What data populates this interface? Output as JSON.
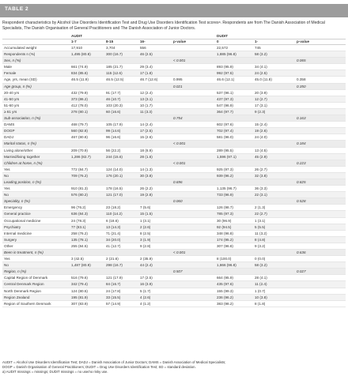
{
  "banner": {
    "label": "TABLE 2"
  },
  "caption": "Respondent characteristics by Alcohol Use Disorders Identification Test and Drug Use Disorders Identification Test scoresᵃ. Respondents are from The Danish Association of Medical Specialists, The Danish Organisation of General Practitioners and The Danish Association of Junior Doctors.",
  "table": {
    "groups": [
      "AUDIT",
      "DUDIT"
    ],
    "columns": [
      "",
      "1-7",
      "8-15",
      "16-",
      "p-value",
      "0",
      "1-",
      "p-value"
    ],
    "rows": [
      {
        "type": "row",
        "cells": [
          "Accumulated weight",
          "17,910",
          "3,704",
          "556",
          "",
          "22,572",
          "745",
          ""
        ]
      },
      {
        "type": "row",
        "cells": [
          "Respondents n (%)",
          "1,495 (80.8)",
          "300 (16.7)",
          "46 (2.5)",
          "",
          "1,885 (96.8)",
          "58 (3.2)",
          ""
        ]
      },
      {
        "type": "section",
        "cells": [
          "Sex, n (%)",
          "",
          "",
          "",
          "< 0.001",
          "",
          "",
          "0.065"
        ]
      },
      {
        "type": "row",
        "cells": [
          "Male",
          "661 (74.9)",
          "185 (21.7)",
          "29 (3.4)",
          "",
          "893 (95.9)",
          "34 (4.1)",
          ""
        ]
      },
      {
        "type": "row",
        "cells": [
          "Female",
          "834 (85.6)",
          "115 (12.6)",
          "17 (1.8)",
          "",
          "992 (97.5)",
          "24 (2.5)",
          ""
        ]
      },
      {
        "type": "row",
        "cells": [
          "Age, yrs, mean (SD)",
          "46.5 (11.9)",
          "46.5 (12.5)",
          "46.7 (12.6)",
          "0.995",
          "46.6 (12.1)",
          "45.0 (11.8)",
          "0.358"
        ]
      },
      {
        "type": "section",
        "cells": [
          "Age group, n (%)",
          "",
          "",
          "",
          "0.021",
          "",
          "",
          "0.350"
        ]
      },
      {
        "type": "row",
        "cells": [
          "20-40 yrs",
          "432 (79.9)",
          "91 (17.7)",
          "12 (2.4)",
          "",
          "537 (96.1)",
          "20 (3.9)",
          ""
        ]
      },
      {
        "type": "row",
        "cells": [
          "41-50 yrs",
          "373 (86.2)",
          "46 (10.7)",
          "13 (3.1)",
          "",
          "437 (97.3)",
          "12 (2.7)",
          ""
        ]
      },
      {
        "type": "row",
        "cells": [
          "51-60 yrs",
          "412 (78.0)",
          "103 (20.3)",
          "10 (1.7)",
          "",
          "547 (96.9)",
          "17 (3.1)",
          ""
        ]
      },
      {
        "type": "row",
        "cells": [
          "≥ 61 yrs",
          "278 (80.1)",
          "60 (16.6)",
          "11 (3.3)",
          "",
          "364 (97.7)",
          "9 (2.3)",
          ""
        ]
      },
      {
        "type": "section",
        "cells": [
          "Sub-association, n (%)",
          "",
          "",
          "",
          "0.754",
          "",
          "",
          "0.163"
        ]
      },
      {
        "type": "row",
        "cells": [
          "DAMS",
          "468 (79.7)",
          "105 (17.9)",
          "14 (2.4)",
          "",
          "602 (97.6)",
          "15 (2.4)",
          ""
        ]
      },
      {
        "type": "row",
        "cells": [
          "DOGP",
          "560 (82.8)",
          "99 (14.6)",
          "17 (2.5)",
          "",
          "702 (97.4)",
          "19 (2.6)",
          ""
        ]
      },
      {
        "type": "row",
        "cells": [
          "DADJ",
          "467 (80.8)",
          "96 (16.6)",
          "15 (2.6)",
          "",
          "581 (96.0)",
          "24 (4.0)",
          ""
        ]
      },
      {
        "type": "section",
        "cells": [
          "Marital status, n (%)",
          "",
          "",
          "",
          "< 0.001",
          "",
          "",
          "0.184"
        ]
      },
      {
        "type": "row",
        "cells": [
          "Living alone/other",
          "209 (70.9)",
          "56 (22.2)",
          "18 (6.9)",
          "",
          "289 (95.5)",
          "13 (4.5)",
          ""
        ]
      },
      {
        "type": "row",
        "cells": [
          "Married/living together",
          "1,286 (82.7)",
          "244 (15.6)",
          "28 (1.6)",
          "",
          "1,596 (97.1)",
          "45 (2.9)",
          ""
        ]
      },
      {
        "type": "section",
        "cells": [
          "Children at home, n (%)",
          "",
          "",
          "",
          "< 0.001",
          "",
          "",
          "0.223"
        ]
      },
      {
        "type": "row",
        "cells": [
          "Yes",
          "772 (84.7)",
          "124 (14.0)",
          "14 (1.3)",
          "",
          "925 (97.3)",
          "26 (2.7)",
          ""
        ]
      },
      {
        "type": "row",
        "cells": [
          "No",
          "709 (76.2)",
          "176 (20.1)",
          "30 (3.8)",
          "",
          "939 (96.2)",
          "32 (3.8)",
          ""
        ]
      },
      {
        "type": "section",
        "cells": [
          "Leading position, n (%)",
          "",
          "",
          "",
          "0.696",
          "",
          "",
          "0.825"
        ]
      },
      {
        "type": "row",
        "cells": [
          "Yes",
          "910 (81.3)",
          "178 (16.5)",
          "26 (2.2)",
          "",
          "1,135 (96.7)",
          "36 (3.3)",
          ""
        ]
      },
      {
        "type": "row",
        "cells": [
          "No",
          "576 (80.2)",
          "121 (17.0)",
          "19 (2.8)",
          "",
          "733 (96.9)",
          "22 (3.1)",
          ""
        ]
      },
      {
        "type": "section",
        "cells": [
          "Speciality, n (%)",
          "",
          "",
          "",
          "0.060",
          "",
          "",
          "0.528"
        ]
      },
      {
        "type": "row",
        "cells": [
          "Emergency",
          "96 (76.2)",
          "23 (18.2)",
          "7 (5.6)",
          "",
          "126 (98.7)",
          "2 (1.3)",
          ""
        ]
      },
      {
        "type": "row",
        "cells": [
          "General practice",
          "636 (84.3)",
          "110 (14.2)",
          "15 (1.5)",
          "",
          "785 (97.3)",
          "22 (2.7)",
          ""
        ]
      },
      {
        "type": "row",
        "cells": [
          "Occupational medicine",
          "24 (78.3)",
          "6 (18.6)",
          "1 (3.1)",
          "",
          "30 (96.9)",
          "1 (3.1)",
          ""
        ]
      },
      {
        "type": "row",
        "cells": [
          "Psychiatry",
          "77 (83.1)",
          "13 (14.3)",
          "2 (2.6)",
          "",
          "92 (94.5)",
          "5 (5.5)",
          ""
        ]
      },
      {
        "type": "row",
        "cells": [
          "Internal medicine",
          "258 (76.2)",
          "71 (21.4)",
          "8 (2.5)",
          "",
          "348 (96.8)",
          "11 (3.2)",
          ""
        ]
      },
      {
        "type": "row",
        "cells": [
          "Surgery",
          "135 (78.1)",
          "34 (20.0)",
          "3 (1.9)",
          "",
          "174 (95.2)",
          "8 (4.8)",
          ""
        ]
      },
      {
        "type": "row",
        "cells": [
          "Other",
          "255 (84.5)",
          "41 (12.7)",
          "9 (2.8)",
          "",
          "307 (96.8)",
          "9 (3.2)",
          ""
        ]
      },
      {
        "type": "section",
        "cells": [
          "Been in treatment, n (%)",
          "",
          "",
          "",
          "< 0.001",
          "",
          "",
          "0.636"
        ]
      },
      {
        "type": "row",
        "cells": [
          "Yes",
          "3 (42.5)",
          "2 (21.6)",
          "2 (35.9)",
          "",
          "8 (100.0)",
          "0 (0.0)",
          ""
        ]
      },
      {
        "type": "row",
        "cells": [
          "No",
          "1,487 (80.9)",
          "298 (16.7)",
          "44 (2.4)",
          "",
          "1,866 (96.8)",
          "58 (3.2)",
          ""
        ]
      },
      {
        "type": "section",
        "cells": [
          "Region, n (%)",
          "",
          "",
          "",
          "0.507",
          "",
          "",
          "0.027"
        ]
      },
      {
        "type": "row",
        "cells": [
          "Capital Region of Denmark",
          "516 (79.6)",
          "121 (17.9)",
          "17 (2.5)",
          "",
          "664 (95.9)",
          "28 (4.1)",
          ""
        ]
      },
      {
        "type": "row",
        "cells": [
          "Central Denmark Region",
          "342 (79.4)",
          "84 (16.7)",
          "16 (3.9)",
          "",
          "435 (97.6)",
          "11 (2.4)",
          ""
        ]
      },
      {
        "type": "row",
        "cells": [
          "North Denmark Region",
          "124 (80.5)",
          "24 (17.8)",
          "5 (1.7)",
          "",
          "155 (99.3)",
          "1 (0.7)",
          ""
        ]
      },
      {
        "type": "row",
        "cells": [
          "Region Zealand",
          "195 (81.9)",
          "33 (15.5)",
          "4 (2.6)",
          "",
          "236 (96.2)",
          "10 (3.8)",
          ""
        ]
      },
      {
        "type": "row",
        "cells": [
          "Region of Southern Denmark",
          "307 (83.9)",
          "57 (14.9)",
          "4 (1.2)",
          "",
          "383 (98.2)",
          "8 (1.8)",
          ""
        ]
      }
    ]
  },
  "footnotes": [
    "AUDIT = Alcohol Use Disorders Identification Test; DADJ = Danish Association of Junior Doctors; DAMS = Danish Association of Medical Specialists;",
    "DOGP = Danish Organisation of General Practitioners; DUDIT = Drug Use Disorders Identification Test; SD = standard deviation.",
    "a) AUDIT missings = missings; DUDIT missings = no use/no risky use."
  ]
}
